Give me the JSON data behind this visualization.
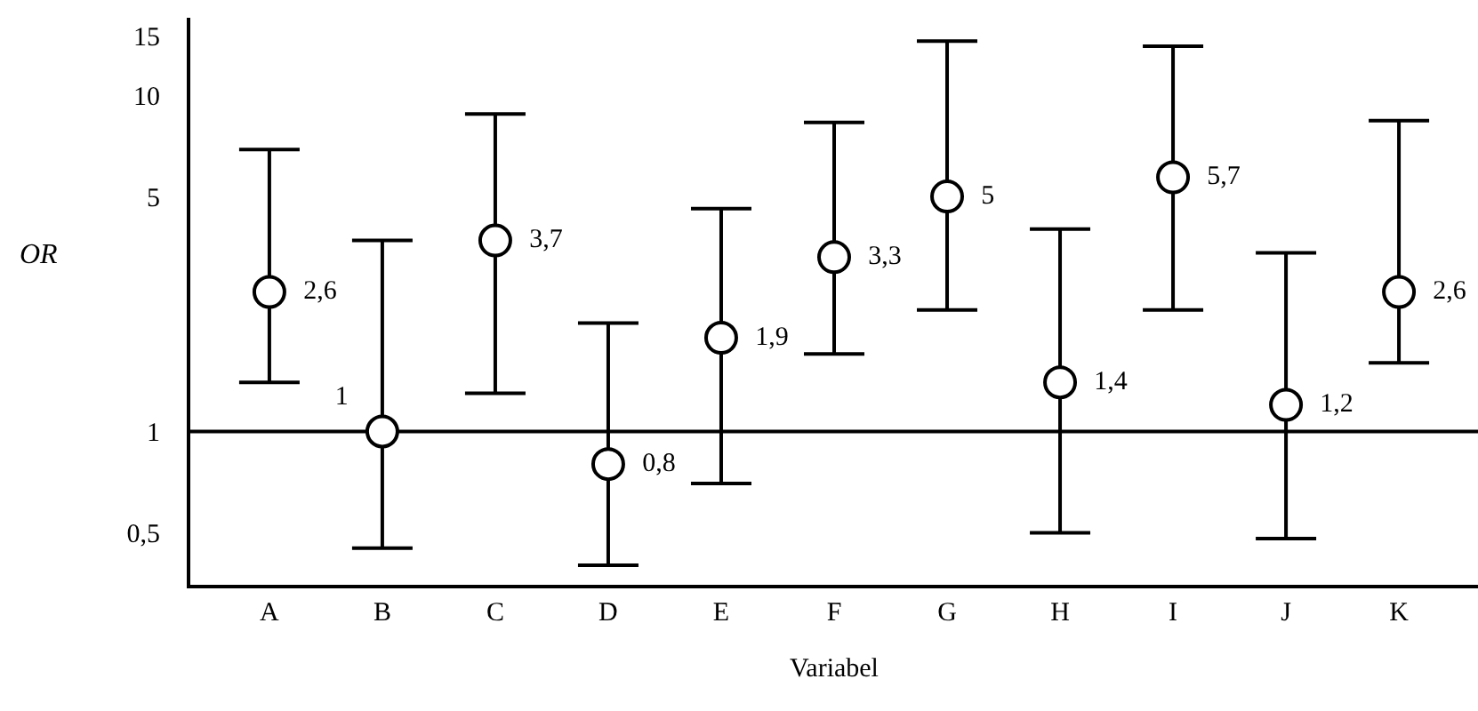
{
  "chart_data": {
    "type": "scatter",
    "xlabel": "Variabel",
    "ylabel": "OR",
    "categories": [
      "A",
      "B",
      "C",
      "D",
      "E",
      "F",
      "G",
      "H",
      "I",
      "J",
      "K"
    ],
    "values": [
      2.6,
      1,
      3.7,
      0.8,
      1.9,
      3.3,
      5,
      1.4,
      5.7,
      1.2,
      2.6
    ],
    "errors": [
      [
        1.4,
        6.9
      ],
      [
        0.45,
        3.7
      ],
      [
        1.3,
        8.8
      ],
      [
        0.4,
        2.1
      ],
      [
        0.7,
        4.6
      ],
      [
        1.7,
        8.3
      ],
      [
        2.3,
        14.5
      ],
      [
        0.5,
        4.0
      ],
      [
        2.3,
        14.0
      ],
      [
        0.48,
        3.4
      ],
      [
        1.6,
        8.4
      ]
    ],
    "value_labels": [
      "2,6",
      "1",
      "3,7",
      "0,8",
      "1,9",
      "3,3",
      "5",
      "1,4",
      "5,7",
      "1,2",
      "2,6"
    ],
    "color": "#000000",
    "marker": "circle",
    "log": "y",
    "ylim": [
      0.35,
      17
    ],
    "yticks": [
      {
        "value": 0.5,
        "label": "0,5"
      },
      1,
      5,
      10,
      15
    ],
    "ref_lines": [
      {
        "axis": "y",
        "value": 1,
        "color": "#000000"
      }
    ],
    "grid": false,
    "legend": false
  }
}
